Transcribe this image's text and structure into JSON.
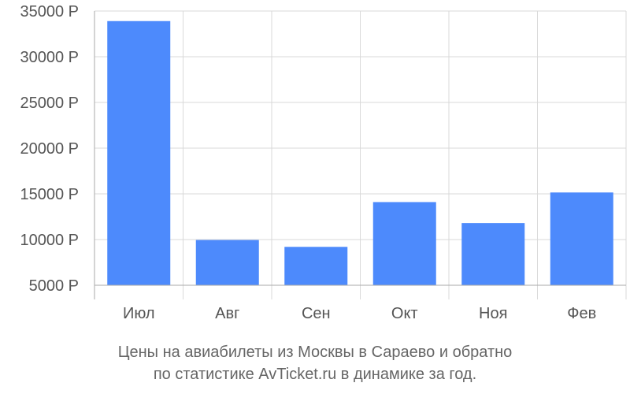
{
  "chart_data": {
    "type": "bar",
    "categories": [
      "Июл",
      "Авг",
      "Сен",
      "Окт",
      "Ноя",
      "Фев"
    ],
    "values": [
      33900,
      9950,
      9200,
      14100,
      11800,
      15150
    ],
    "ylim": [
      5000,
      35000
    ],
    "yticks": [
      5000,
      10000,
      15000,
      20000,
      25000,
      30000,
      35000
    ],
    "ytick_labels": [
      "5000 Р",
      "10000 Р",
      "15000 Р",
      "20000 Р",
      "25000 Р",
      "30000 Р",
      "35000 Р"
    ],
    "bar_color": "#4d8afc",
    "grid": true,
    "legend": "none"
  },
  "caption": {
    "line1": "Цены на авиабилеты из Москвы в Сараево и обратно",
    "line2": "по статистике AvTicket.ru в динамике за год."
  }
}
